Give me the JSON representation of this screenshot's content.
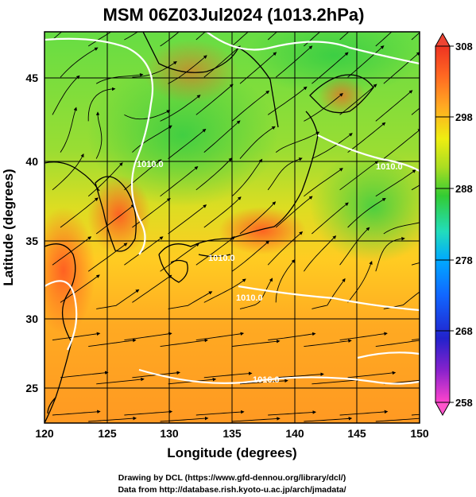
{
  "title": "MSM 06Z03Jul2024 (1013.2hPa)",
  "axes": {
    "xlabel": "Longitude (degrees)",
    "ylabel": "Latitude  (degrees)",
    "x_ticks": [
      "120",
      "125",
      "130",
      "135",
      "140",
      "145",
      "150"
    ],
    "y_ticks": [
      "45",
      "40",
      "35",
      "30",
      "25"
    ],
    "xlim": [
      120,
      150
    ],
    "ylim": [
      22.4,
      47.6
    ]
  },
  "colorbar": {
    "ticks": [
      "308",
      "298",
      "288",
      "278",
      "268",
      "258"
    ],
    "range": [
      258,
      308
    ],
    "colors": [
      "#ff44cc",
      "#8822cc",
      "#2222cc",
      "#1166ff",
      "#00aaff",
      "#22ddbb",
      "#33cc33",
      "#aadd22",
      "#eeee11",
      "#ffaa22",
      "#ff6622",
      "#ee3322"
    ]
  },
  "isobars": [
    "1010.0",
    "1010.0",
    "1010.0",
    "1010.0",
    "1016.0"
  ],
  "credits": {
    "line1": "Drawing by DCL (https://www.gfd-dennou.org/library/dcl/)",
    "line2": "Data from http://database.rish.kyoto-u.ac.jp/arch/jmadata/"
  }
}
